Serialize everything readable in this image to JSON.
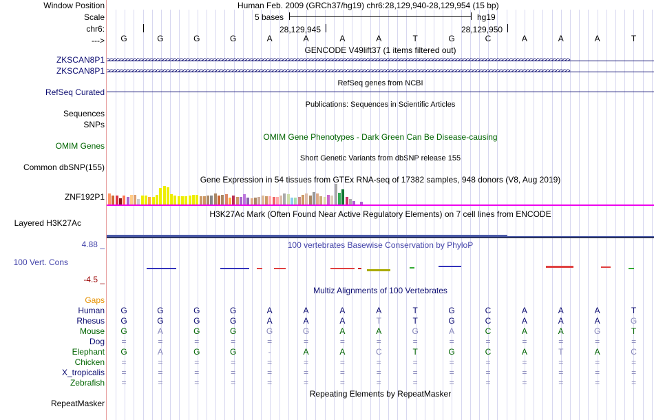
{
  "labels": {
    "window_position": "Window Position",
    "scale": "Scale",
    "chr": "chr6:",
    "arrow": "--->",
    "zkscan1": "ZKSCAN8P1",
    "zkscan2": "ZKSCAN8P1",
    "refseq": "RefSeq Curated",
    "sequences": "Sequences",
    "snps": "SNPs",
    "omim_genes": "OMIM Genes",
    "common_dbsnp": "Common dbSNP(155)",
    "znf": "ZNF192P1",
    "layered": "Layered H3K27Ac",
    "max": "4.88 _",
    "vert_cons": "100 Vert. Cons",
    "min": "-4.5 _",
    "gaps": "Gaps",
    "human": "Human",
    "rhesus": "Rhesus",
    "mouse": "Mouse",
    "dog": "Dog",
    "elephant": "Elephant",
    "chicken": "Chicken",
    "xtrop": "X_tropicalis",
    "zebrafish": "Zebrafish",
    "repeatmasker": "RepeatMasker"
  },
  "header": {
    "assembly": "Human Feb. 2009 (GRCh37/hg19)   chr6:28,129,940-28,129,954 (15 bp)",
    "scale_bases": "5 bases",
    "scale_db": "hg19",
    "pos1": "28,129,945",
    "pos2": "28,129,950"
  },
  "tracks": {
    "gencode": "GENCODE V49lift37 (1 items filtered out)",
    "refseq": "RefSeq genes from NCBI",
    "publications": "Publications: Sequences in Scientific Articles",
    "omim": "OMIM Gene Phenotypes - Dark Green Can Be Disease-causing",
    "dbsnp": "Short Genetic Variants from dbSNP release 155",
    "gtex": "Gene Expression in 54 tissues from GTEx RNA-seq of 17382 samples, 948 donors (V8, Aug 2019)",
    "h3k27ac": "H3K27Ac Mark (Often Found Near Active Regulatory Elements) on 7 cell lines from ENCODE",
    "phylop": "100 vertebrates Basewise Conservation by PhyloP",
    "multiz": "Multiz Alignments of 100 Vertebrates",
    "repeat": "Repeating Elements by RepeatMasker"
  },
  "gene_arrows": ">>>>>>>>>>>>>>>>>>>>>>>>>>>>>>>>>>>>>>>>>>>>>>>>>>>>>>>>>>>>>>>>>>>>>>>>>>>>>>>>>>>>>>>>>>>>>>>>>>>>>>>>>>>>>>>>>>>>>>>>>>>>>>>>>>>>>>>>>>>",
  "sequence": [
    "G",
    "G",
    "G",
    "G",
    "A",
    "A",
    "A",
    "A",
    "T",
    "G",
    "C",
    "A",
    "A",
    "A",
    "T"
  ],
  "alignments": [
    {
      "key": "human",
      "bases": [
        "G",
        "G",
        "G",
        "G",
        "A",
        "A",
        "A",
        "A",
        "T",
        "G",
        "C",
        "A",
        "A",
        "A",
        "T"
      ],
      "faint": []
    },
    {
      "key": "rhesus",
      "bases": [
        "G",
        "G",
        "G",
        "G",
        "A",
        "A",
        "A",
        "T",
        "T",
        "G",
        "C",
        "A",
        "A",
        "A",
        "G"
      ],
      "faint": [
        7,
        14
      ]
    },
    {
      "key": "mouse",
      "bases": [
        "G",
        "A",
        "G",
        "G",
        "G",
        "G",
        "A",
        "A",
        "G",
        "A",
        "C",
        "A",
        "A",
        "G",
        "T"
      ],
      "faint": [
        1,
        4,
        5,
        8,
        9,
        13
      ]
    },
    {
      "key": "dog",
      "bases": [
        "=",
        "=",
        "=",
        "=",
        "=",
        "=",
        "=",
        "=",
        "=",
        "=",
        "=",
        "=",
        "=",
        "=",
        "="
      ],
      "faint": []
    },
    {
      "key": "elephant",
      "bases": [
        "G",
        "A",
        "G",
        "G",
        "-",
        "A",
        "A",
        "C",
        "T",
        "G",
        "C",
        "A",
        "T",
        "A",
        "C"
      ],
      "faint": [
        1,
        4,
        7,
        12,
        14
      ]
    },
    {
      "key": "chicken",
      "bases": [
        "=",
        "=",
        "=",
        "=",
        "=",
        "=",
        "=",
        "=",
        "=",
        "=",
        "=",
        "=",
        "=",
        "=",
        "="
      ],
      "faint": []
    },
    {
      "key": "xtrop",
      "bases": [
        "=",
        "=",
        "=",
        "=",
        "=",
        "=",
        "=",
        "=",
        "=",
        "=",
        "=",
        "=",
        "=",
        "=",
        "="
      ],
      "faint": []
    },
    {
      "key": "zebrafish",
      "bases": [
        "=",
        "=",
        "=",
        "=",
        "=",
        "=",
        "=",
        "=",
        "=",
        "=",
        "=",
        "=",
        "=",
        "=",
        "="
      ],
      "faint": []
    }
  ],
  "gtex_values": [
    16,
    13,
    13,
    9,
    13,
    11,
    14,
    14,
    8,
    13,
    13,
    11,
    11,
    14,
    24,
    27,
    25,
    15,
    13,
    12,
    12,
    12,
    13,
    14,
    14,
    12,
    12,
    13,
    13,
    16,
    13,
    14,
    15,
    10,
    13,
    11,
    11,
    15,
    10,
    9,
    10,
    11,
    13,
    12,
    12,
    11,
    11,
    13,
    16,
    15,
    10,
    10,
    11,
    14,
    16,
    13,
    18,
    16,
    12,
    11,
    14,
    13,
    30,
    17,
    22,
    11,
    8,
    5,
    0,
    4
  ],
  "gtex_colors": [
    "#ff9966",
    "#cc6633",
    "#dd3344",
    "#8b1a1a",
    "#ff7755",
    "#aa66cc",
    "#ffcc88",
    "#dda070",
    "#cccccc",
    "#eeee00",
    "#eeee00",
    "#ffaa44",
    "#eeee00",
    "#eeee00",
    "#eeee00",
    "#eeee00",
    "#eeee00",
    "#eeee00",
    "#eeee00",
    "#eeee00",
    "#eeee00",
    "#eeee00",
    "#eeee00",
    "#eeee00",
    "#eeee00",
    "#cc9966",
    "#cc9966",
    "#aa8866",
    "#888888",
    "#aa8866",
    "#cc6633",
    "#aa8866",
    "#dd8866",
    "#ffaa44",
    "#bb3355",
    "#cc9966",
    "#aa66cc",
    "#bb77dd",
    "#8866aa",
    "#ddaa88",
    "#aa8866",
    "#ccaa99",
    "#ddbb99",
    "#cc9966",
    "#ffaaaa",
    "#ee6666",
    "#ffaaaa",
    "#ddbbaa",
    "#aaaaaa",
    "#ccddaa",
    "#88ccee",
    "#aaddaa",
    "#cc8888",
    "#cc9966",
    "#ddbbaa",
    "#aa8866",
    "#999999",
    "#ddaa88",
    "#ccaa77",
    "#ddddaa",
    "#cc66cc",
    "#ddccbb",
    "#aaaaaa",
    "#33aa55",
    "#117733",
    "#cc3366",
    "#aaaaaa",
    "#aa66cc",
    "#ee44ee",
    "#aa66cc"
  ],
  "colors": {
    "navy": "#0b0b70",
    "dark_green": "#006400",
    "red": "#9a0000",
    "orange": "#e69100",
    "magenta": "#ee00ee",
    "faint": "#8888bb",
    "phylop_blue": "#4444aa"
  }
}
